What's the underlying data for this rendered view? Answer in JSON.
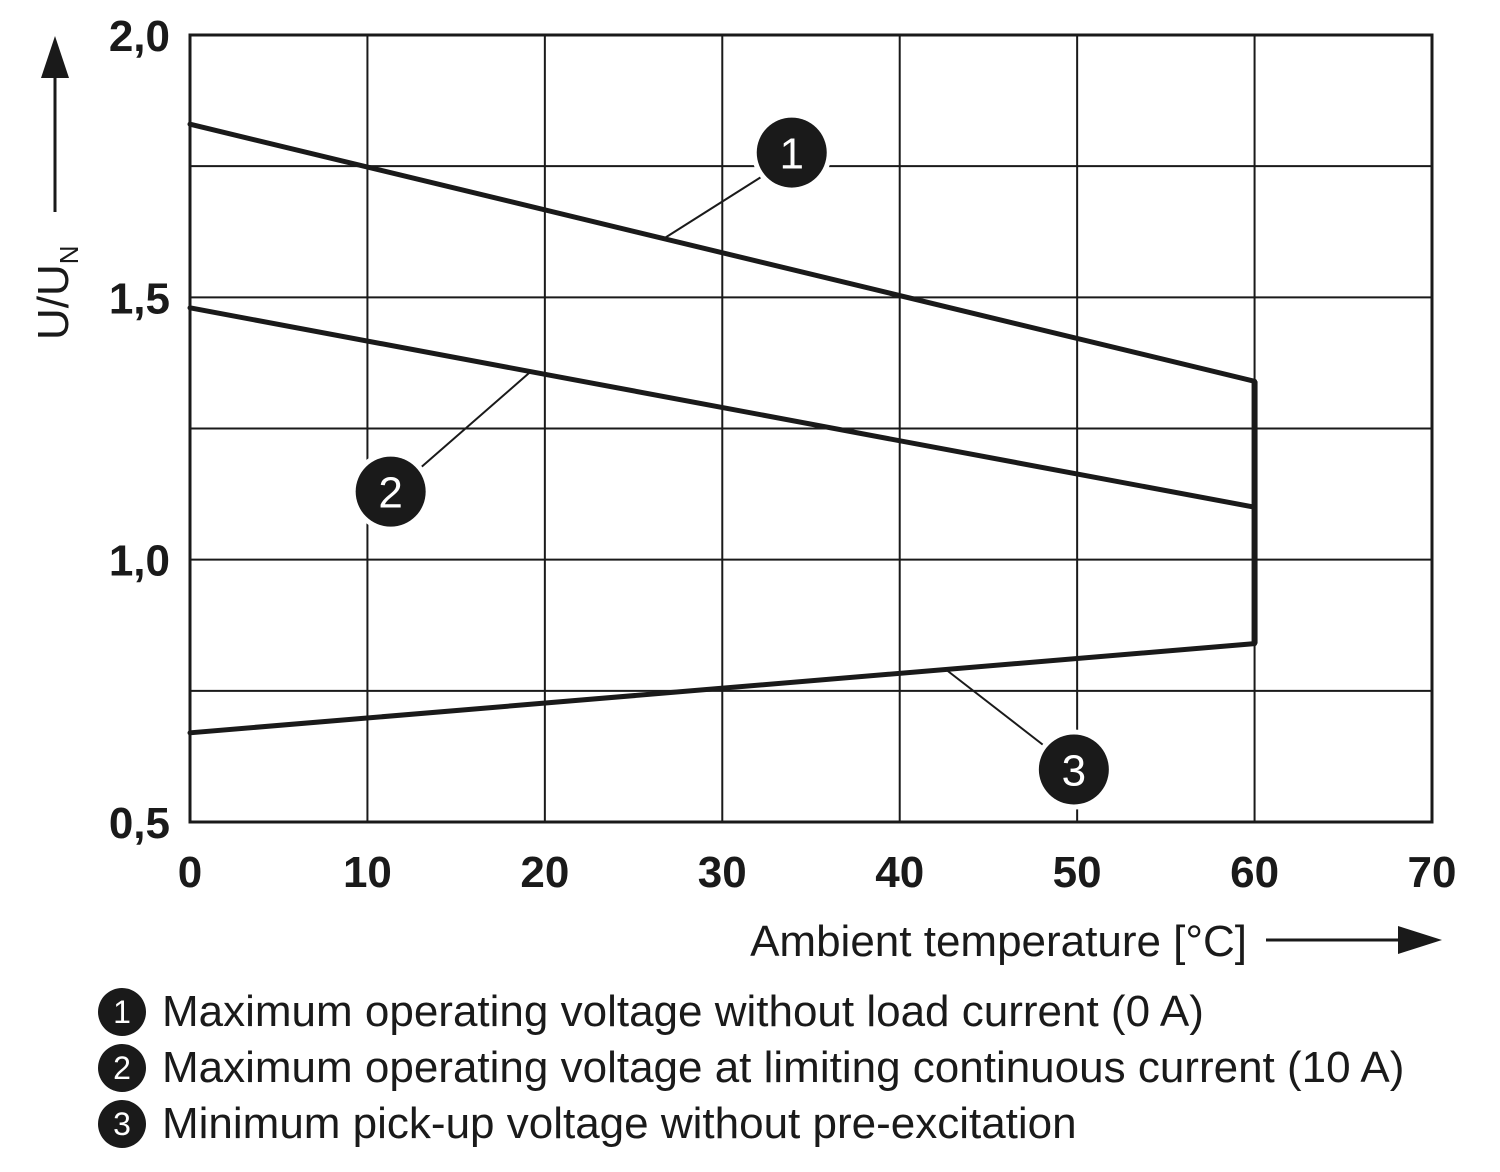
{
  "chart_data": {
    "type": "line",
    "xlabel": "Ambient temperature [°C]",
    "ylabel": "U/U",
    "ylabel_subscript": "N",
    "xlim": [
      0,
      70
    ],
    "ylim": [
      0.5,
      2.0
    ],
    "x_ticks": [
      "0",
      "10",
      "20",
      "30",
      "40",
      "50",
      "60",
      "70"
    ],
    "y_ticks": [
      "0,5",
      "1,0",
      "1,5",
      "2,0"
    ],
    "grid": true,
    "series": [
      {
        "marker": "1",
        "name": "Maximum operating voltage without load current (0 A)",
        "x": [
          0,
          60
        ],
        "y": [
          1.83,
          1.34
        ]
      },
      {
        "marker": "2",
        "name": "Maximum operating voltage at limiting continuous current (10 A)",
        "x": [
          0,
          60
        ],
        "y": [
          1.48,
          1.1
        ]
      },
      {
        "marker": "3",
        "name": "Minimum pick-up voltage without pre-excitation",
        "x": [
          0,
          60
        ],
        "y": [
          0.67,
          0.84
        ]
      }
    ]
  }
}
